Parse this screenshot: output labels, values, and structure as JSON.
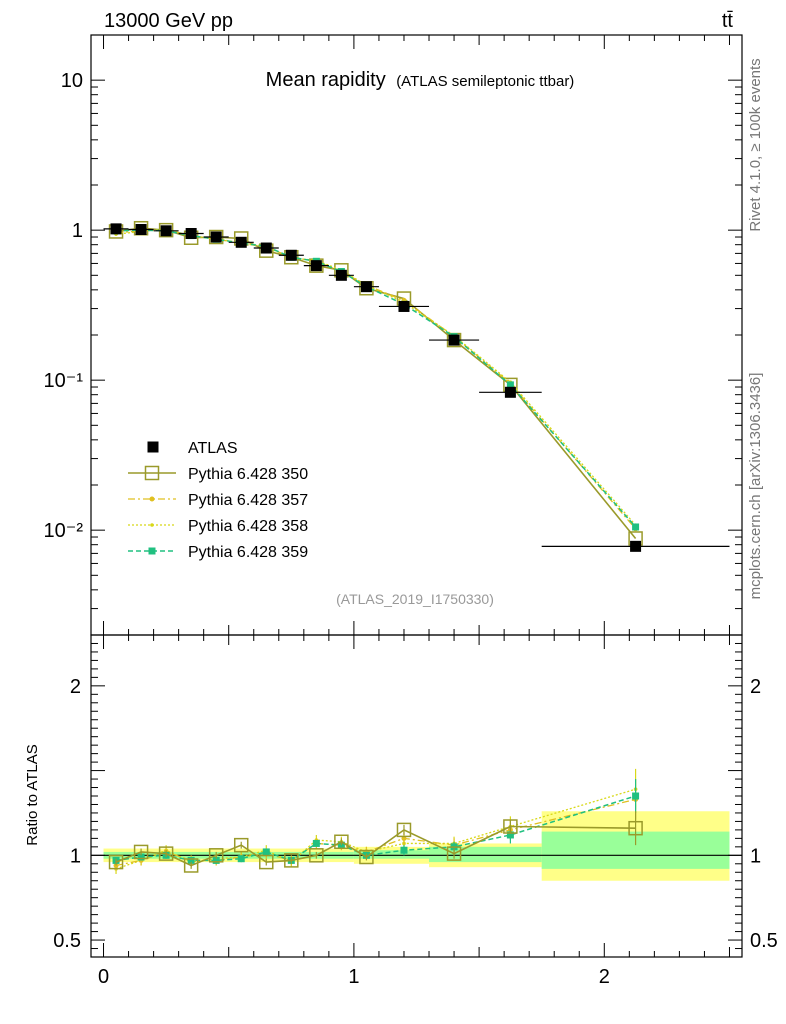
{
  "header": {
    "energy_label": "13000 GeV pp",
    "process_label": "tt̄"
  },
  "side_labels": {
    "rivet": "Rivet 4.1.0, ≥ 100k events",
    "mcplots": "mcplots.cern.ch [arXiv:1306.3436]"
  },
  "colors": {
    "data": "#000000",
    "p350": "#9a9a2a",
    "p357": "#e0c020",
    "p358": "#d8d818",
    "p359": "#20c080",
    "band_inner": "#99ff99",
    "band_outer": "#ffff88"
  },
  "chart_data": [
    {
      "type": "line",
      "title": "Mean rapidity",
      "subtitle": "(ATLAS semileptonic ttbar)",
      "watermark": "(ATLAS_2019_I1750330)",
      "xlabel": "",
      "ylabel": "",
      "yscale": "log",
      "xlim": [
        -0.05,
        2.55
      ],
      "ylim": [
        0.002,
        20
      ],
      "y_ticks": [
        {
          "value": 10,
          "label": "10"
        },
        {
          "value": 1,
          "label": "1"
        },
        {
          "value": 0.1,
          "label": "10⁻¹"
        },
        {
          "value": 0.01,
          "label": "10⁻²"
        }
      ],
      "legend": {
        "position": "bottom-left",
        "entries": [
          {
            "label": "ATLAS",
            "series": "ATLAS"
          },
          {
            "label": "Pythia 6.428 350",
            "series": "p350"
          },
          {
            "label": "Pythia 6.428 357",
            "series": "p357"
          },
          {
            "label": "Pythia 6.428 358",
            "series": "p358"
          },
          {
            "label": "Pythia 6.428 359",
            "series": "p359"
          }
        ]
      },
      "x": [
        0.05,
        0.15,
        0.25,
        0.35,
        0.45,
        0.55,
        0.65,
        0.75,
        0.85,
        0.95,
        1.05,
        1.2,
        1.4,
        1.625,
        2.125
      ],
      "x_err": [
        0.05,
        0.05,
        0.05,
        0.05,
        0.05,
        0.05,
        0.05,
        0.05,
        0.05,
        0.05,
        0.05,
        0.1,
        0.1,
        0.125,
        0.375
      ],
      "series": [
        {
          "key": "ATLAS",
          "name": "ATLAS",
          "style": "data",
          "values": [
            1.02,
            1.01,
            0.99,
            0.95,
            0.9,
            0.83,
            0.76,
            0.68,
            0.58,
            0.5,
            0.42,
            0.31,
            0.185,
            0.083,
            0.0078
          ]
        },
        {
          "key": "p350",
          "name": "Pythia 6.428 350",
          "style": "open-square",
          "values": [
            0.98,
            1.03,
            1.0,
            0.89,
            0.9,
            0.88,
            0.73,
            0.66,
            0.58,
            0.54,
            0.41,
            0.35,
            0.185,
            0.093,
            0.0088
          ]
        },
        {
          "key": "p357",
          "name": "Pythia 6.428 357",
          "style": "dashdot",
          "values": [
            0.96,
            0.99,
            1.01,
            0.92,
            0.87,
            0.82,
            0.77,
            0.66,
            0.62,
            0.53,
            0.43,
            0.34,
            0.196,
            0.095,
            0.0102
          ]
        },
        {
          "key": "p358",
          "name": "Pythia 6.428 358",
          "style": "dotted",
          "values": [
            0.94,
            0.98,
            1.02,
            0.91,
            0.88,
            0.82,
            0.78,
            0.65,
            0.63,
            0.54,
            0.43,
            0.33,
            0.198,
            0.097,
            0.0108
          ]
        },
        {
          "key": "p359",
          "name": "Pythia 6.428 359",
          "style": "dashed",
          "values": [
            0.99,
            1.0,
            0.99,
            0.92,
            0.87,
            0.82,
            0.78,
            0.66,
            0.62,
            0.53,
            0.42,
            0.32,
            0.195,
            0.093,
            0.0105
          ]
        }
      ]
    },
    {
      "type": "line",
      "ylabel": "Ratio to ATLAS",
      "xlabel": "",
      "xlim": [
        -0.05,
        2.55
      ],
      "ylim": [
        0.4,
        2.3
      ],
      "x_ticks": [
        {
          "value": 0,
          "label": "0"
        },
        {
          "value": 1,
          "label": "1"
        },
        {
          "value": 2,
          "label": "2"
        }
      ],
      "y_ticks": [
        {
          "value": 2,
          "label": "2"
        },
        {
          "value": 1,
          "label": "1"
        },
        {
          "value": 0.5,
          "label": "0.5"
        }
      ],
      "bands": [
        {
          "x_lo": 0.0,
          "x_hi": 1.0,
          "inner": [
            0.98,
            1.02
          ],
          "outer": [
            0.96,
            1.04
          ]
        },
        {
          "x_lo": 1.0,
          "x_hi": 1.3,
          "inner": [
            0.98,
            1.03
          ],
          "outer": [
            0.95,
            1.05
          ]
        },
        {
          "x_lo": 1.3,
          "x_hi": 1.75,
          "inner": [
            0.96,
            1.05
          ],
          "outer": [
            0.93,
            1.07
          ]
        },
        {
          "x_lo": 1.75,
          "x_hi": 2.5,
          "inner": [
            0.92,
            1.14
          ],
          "outer": [
            0.85,
            1.26
          ]
        }
      ],
      "x": [
        0.05,
        0.15,
        0.25,
        0.35,
        0.45,
        0.55,
        0.65,
        0.75,
        0.85,
        0.95,
        1.05,
        1.2,
        1.4,
        1.625,
        2.125
      ],
      "series": [
        {
          "key": "p350",
          "name": "Pythia 6.428 350",
          "style": "open-square",
          "values": [
            0.96,
            1.02,
            1.01,
            0.94,
            1.0,
            1.06,
            0.96,
            0.97,
            1.0,
            1.08,
            0.99,
            1.15,
            1.01,
            1.17,
            1.16
          ],
          "errors": [
            0.02,
            0.02,
            0.02,
            0.02,
            0.02,
            0.02,
            0.02,
            0.02,
            0.02,
            0.02,
            0.02,
            0.03,
            0.03,
            0.04,
            0.1
          ]
        },
        {
          "key": "p357",
          "name": "Pythia 6.428 357",
          "style": "dashdot",
          "values": [
            0.94,
            0.97,
            1.02,
            0.97,
            0.97,
            0.99,
            1.01,
            0.97,
            1.07,
            1.06,
            1.02,
            1.1,
            1.06,
            1.15,
            1.33
          ],
          "errors": [
            0.03,
            0.03,
            0.03,
            0.03,
            0.03,
            0.03,
            0.03,
            0.03,
            0.03,
            0.03,
            0.03,
            0.04,
            0.04,
            0.06,
            0.12
          ]
        },
        {
          "key": "p358",
          "name": "Pythia 6.428 358",
          "style": "dotted",
          "values": [
            0.92,
            0.97,
            1.03,
            0.96,
            0.98,
            0.99,
            1.03,
            0.96,
            1.09,
            1.08,
            1.02,
            1.07,
            1.07,
            1.17,
            1.39
          ],
          "errors": [
            0.03,
            0.03,
            0.03,
            0.03,
            0.03,
            0.03,
            0.03,
            0.03,
            0.03,
            0.03,
            0.03,
            0.04,
            0.04,
            0.06,
            0.12
          ]
        },
        {
          "key": "p359",
          "name": "Pythia 6.428 359",
          "style": "dashed",
          "values": [
            0.97,
            0.99,
            1.0,
            0.97,
            0.97,
            0.98,
            1.02,
            0.97,
            1.07,
            1.06,
            1.0,
            1.03,
            1.05,
            1.12,
            1.35
          ],
          "errors": [
            0.02,
            0.02,
            0.02,
            0.02,
            0.02,
            0.02,
            0.02,
            0.02,
            0.02,
            0.02,
            0.02,
            0.03,
            0.03,
            0.05,
            0.1
          ]
        }
      ]
    }
  ]
}
